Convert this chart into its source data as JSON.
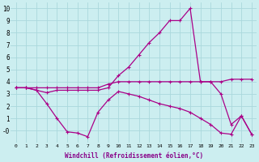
{
  "xlabel": "Windchill (Refroidissement éolien,°C)",
  "background_color": "#cceef0",
  "grid_color": "#aad8dc",
  "line_color": "#aa0088",
  "x": [
    0,
    1,
    2,
    3,
    4,
    5,
    6,
    7,
    8,
    9,
    10,
    11,
    12,
    13,
    14,
    15,
    16,
    17,
    18,
    19,
    20,
    21,
    22,
    23
  ],
  "y_top": [
    3.5,
    3.5,
    3.5,
    3.5,
    3.5,
    3.5,
    3.5,
    3.5,
    3.5,
    3.8,
    4.0,
    4.0,
    4.0,
    4.0,
    4.0,
    4.0,
    4.0,
    4.0,
    4.0,
    4.0,
    4.0,
    4.2,
    4.2,
    4.2
  ],
  "y_mid": [
    3.5,
    3.5,
    3.3,
    3.1,
    3.3,
    3.3,
    3.3,
    3.3,
    3.3,
    3.5,
    4.5,
    5.2,
    6.2,
    7.2,
    8.0,
    9.0,
    9.0,
    10.0,
    4.0,
    4.0,
    3.0,
    0.5,
    1.2,
    -0.3
  ],
  "y_bot": [
    3.5,
    3.5,
    3.3,
    2.2,
    1.0,
    -0.1,
    -0.2,
    -0.5,
    1.5,
    2.5,
    3.2,
    3.0,
    2.8,
    2.5,
    2.2,
    2.0,
    1.8,
    1.5,
    1.0,
    0.5,
    -0.2,
    -0.3,
    1.2,
    -0.3
  ],
  "ylim": [
    -1.0,
    10.5
  ],
  "xlim_min": -0.5,
  "xlim_max": 23.5,
  "yticks": [
    0,
    1,
    2,
    3,
    4,
    5,
    6,
    7,
    8,
    9,
    10
  ],
  "ytick_labels": [
    "-0",
    "1",
    "2",
    "3",
    "4",
    "5",
    "6",
    "7",
    "8",
    "9",
    "10"
  ],
  "xticks": [
    0,
    1,
    2,
    3,
    4,
    5,
    6,
    7,
    8,
    9,
    10,
    11,
    12,
    13,
    14,
    15,
    16,
    17,
    18,
    19,
    20,
    21,
    22,
    23
  ]
}
